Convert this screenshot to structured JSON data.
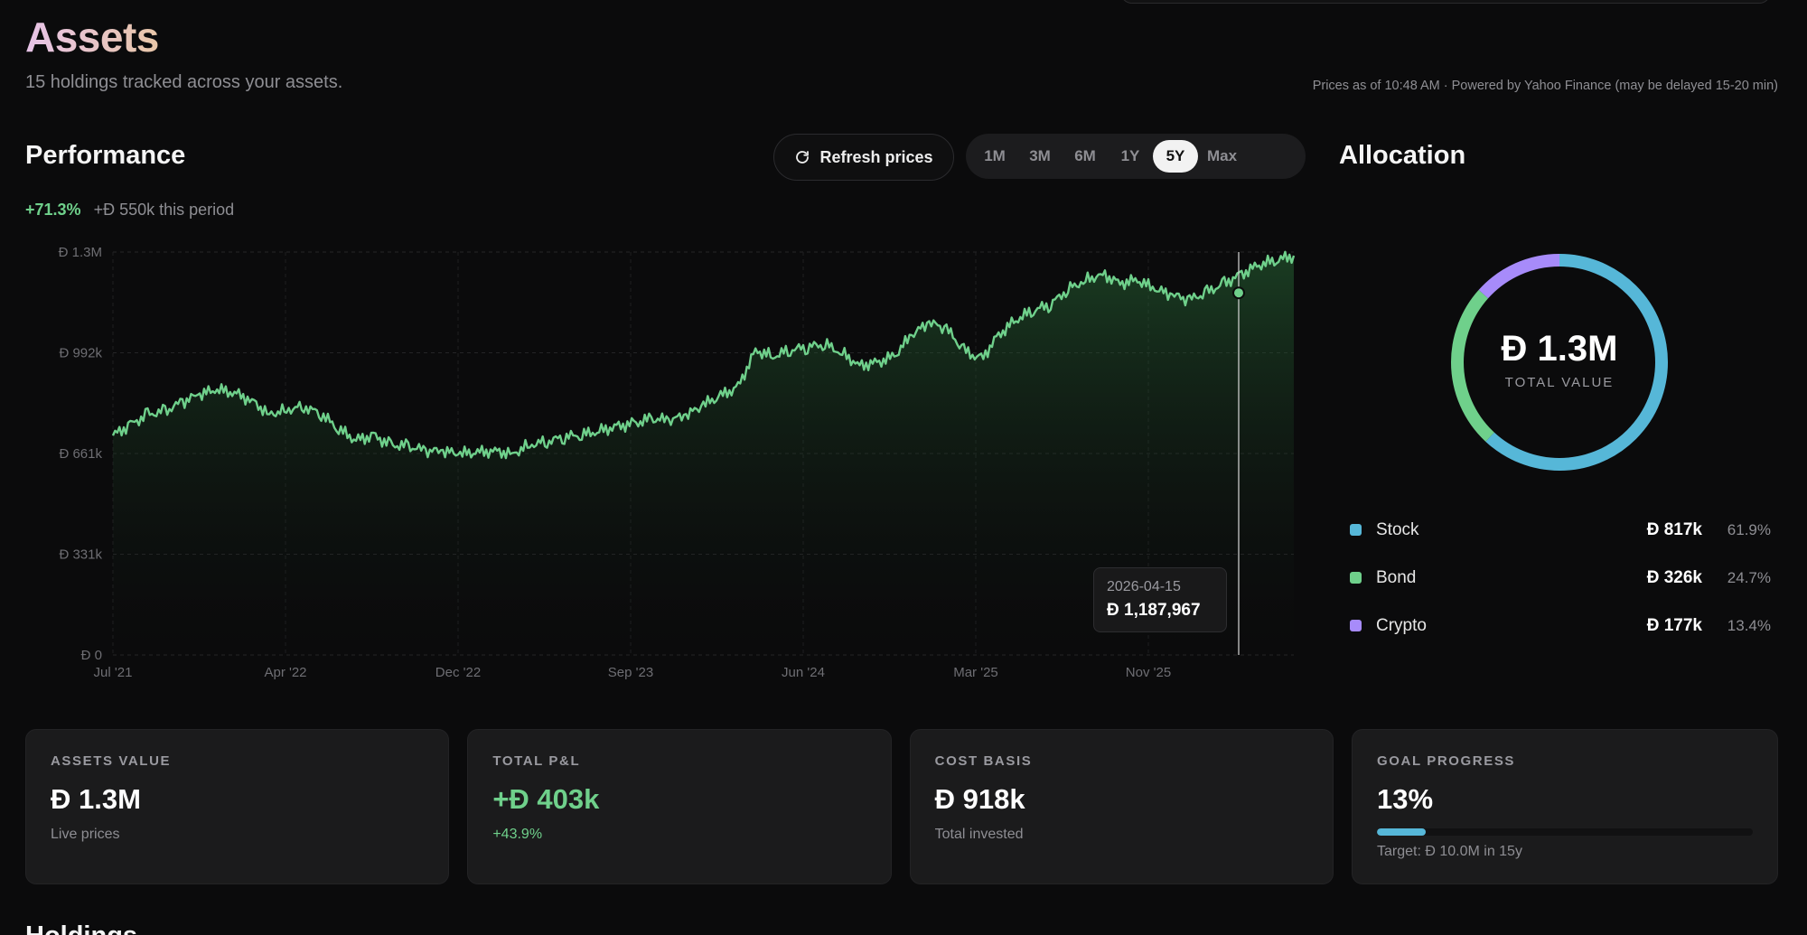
{
  "header": {
    "title": "Assets",
    "subtitle": "15 holdings tracked across your assets.",
    "price_note": "Prices as of 10:48 AM · Powered by Yahoo Finance (may be delayed 15-20 min)"
  },
  "performance": {
    "title": "Performance",
    "refresh_label": "Refresh prices",
    "ranges": [
      "1M",
      "3M",
      "6M",
      "1Y",
      "5Y",
      "Max"
    ],
    "active_range": "5Y",
    "change_pct": "+71.3%",
    "change_amount": "+Đ 550k this period",
    "tooltip": {
      "date": "2026-04-15",
      "value": "Đ 1,187,967"
    }
  },
  "chart_data": {
    "type": "area",
    "x_ticks": [
      "Jul '21",
      "Apr '22",
      "Dec '22",
      "Sep '23",
      "Jun '24",
      "Mar '25",
      "Nov '25"
    ],
    "y_ticks": [
      "Đ 0",
      "Đ 331k",
      "Đ 661k",
      "Đ 992k",
      "Đ 1.3M"
    ],
    "ylim": [
      0,
      1322000
    ],
    "grid": true,
    "line_color": "#6fd08b",
    "values": [
      720000,
      755000,
      790000,
      800000,
      830000,
      855000,
      870000,
      860000,
      835000,
      790000,
      805000,
      815000,
      790000,
      740000,
      705000,
      720000,
      690000,
      685000,
      670000,
      668000,
      660000,
      665000,
      670000,
      660000,
      690000,
      700000,
      715000,
      722000,
      735000,
      750000,
      760000,
      775000,
      770000,
      785000,
      820000,
      850000,
      880000,
      1000000,
      980000,
      1000000,
      1010000,
      1020000,
      990000,
      950000,
      960000,
      980000,
      1050000,
      1090000,
      1070000,
      1000000,
      970000,
      1050000,
      1100000,
      1130000,
      1150000,
      1200000,
      1230000,
      1250000,
      1220000,
      1230000,
      1200000,
      1180000,
      1165000,
      1190000,
      1220000,
      1250000,
      1280000,
      1295000,
      1310000
    ],
    "highlight": {
      "date": "2026-04-15",
      "value": 1187967
    }
  },
  "allocation": {
    "title": "Allocation",
    "total_value": "Đ 1.3M",
    "total_label": "TOTAL VALUE",
    "items": [
      {
        "name": "Stock",
        "value": "Đ 817k",
        "pct": "61.9%",
        "fraction": 0.619,
        "color": "#56b7d8"
      },
      {
        "name": "Bond",
        "value": "Đ 326k",
        "pct": "24.7%",
        "fraction": 0.247,
        "color": "#6fd08b"
      },
      {
        "name": "Crypto",
        "value": "Đ 177k",
        "pct": "13.4%",
        "fraction": 0.134,
        "color": "#a78bfa"
      }
    ]
  },
  "cards": {
    "assets_value": {
      "label": "ASSETS VALUE",
      "value": "Đ 1.3M",
      "sub": "Live prices"
    },
    "total_pl": {
      "label": "TOTAL P&L",
      "value": "+Đ 403k",
      "sub": "+43.9%"
    },
    "cost_basis": {
      "label": "COST BASIS",
      "value": "Đ 918k",
      "sub": "Total invested"
    },
    "goal_progress": {
      "label": "GOAL PROGRESS",
      "value": "13%",
      "fraction": 0.13,
      "sub": "Target: Đ 10.0M in 15y"
    }
  },
  "holdings": {
    "title": "Holdings"
  }
}
